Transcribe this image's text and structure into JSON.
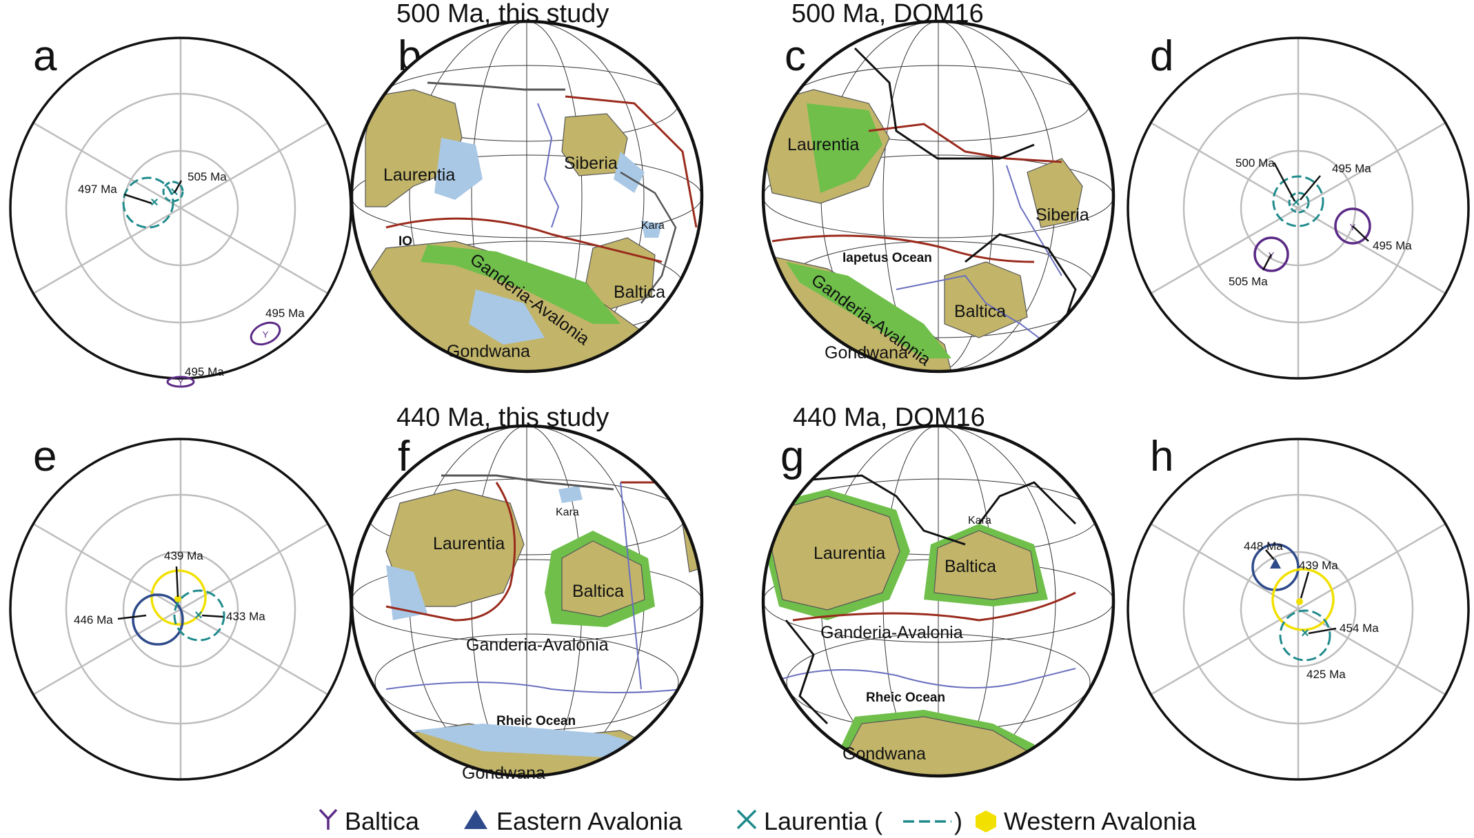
{
  "panel_titles": {
    "b": "500 Ma, this study",
    "c": "500 Ma, DOM16",
    "f": "440 Ma, this study",
    "g": "440 Ma, DOM16"
  },
  "panel_letters": [
    "a",
    "b",
    "c",
    "d",
    "e",
    "f",
    "g",
    "h"
  ],
  "stereonets": {
    "a": {
      "labels": [
        "497 Ma",
        "505 Ma",
        "495 Ma",
        "495 Ma"
      ]
    },
    "d": {
      "labels": [
        "495 Ma",
        "500 Ma",
        "495 Ma",
        "505 Ma"
      ]
    },
    "e": {
      "labels": [
        "439 Ma",
        "446 Ma",
        "433 Ma"
      ]
    },
    "h": {
      "labels": [
        "448 Ma",
        "439 Ma",
        "454 Ma",
        "425 Ma"
      ]
    }
  },
  "maps": {
    "b": {
      "labels": [
        "Laurentia",
        "Siberia",
        "Kara",
        "IO",
        "Ganderia-Avalonia",
        "Baltica",
        "Gondwana"
      ]
    },
    "c": {
      "labels": [
        "Laurentia",
        "Siberia",
        "Iapetus Ocean",
        "Ganderia-Avalonia",
        "Baltica",
        "Gondwana"
      ]
    },
    "f": {
      "labels": [
        "Kara",
        "Laurentia",
        "Baltica",
        "Ganderia-Avalonia",
        "Rheic Ocean",
        "Gondwana"
      ]
    },
    "g": {
      "labels": [
        "Kara",
        "Laurentia",
        "Baltica",
        "Ganderia-Avalonia",
        "Rheic Ocean",
        "Gondwana"
      ]
    }
  },
  "legend": {
    "items": [
      {
        "label": "Baltica",
        "icon": "baltica-y-symbol",
        "color": "#5b2a86"
      },
      {
        "label": "Eastern Avalonia",
        "icon": "triangle-symbol",
        "color": "#2e4a8a"
      },
      {
        "label": "Laurentia (",
        "suffix": ")",
        "icon": "x-symbol",
        "color": "#1f8a8c"
      },
      {
        "label": "Western Avalonia",
        "icon": "hexagon-symbol",
        "color": "#f2e000"
      }
    ]
  },
  "colors": {
    "land": "#c2b56a",
    "shelf": "#6fbf4a",
    "water": "#a9c8e6",
    "baltica": "#5b2a86",
    "eastern_avalonia": "#2e4a8a",
    "laurentia": "#1f8a8c",
    "western_avalonia": "#f2e000",
    "subduction": "#9a2a1c",
    "ridge": "#6a6fbf"
  }
}
